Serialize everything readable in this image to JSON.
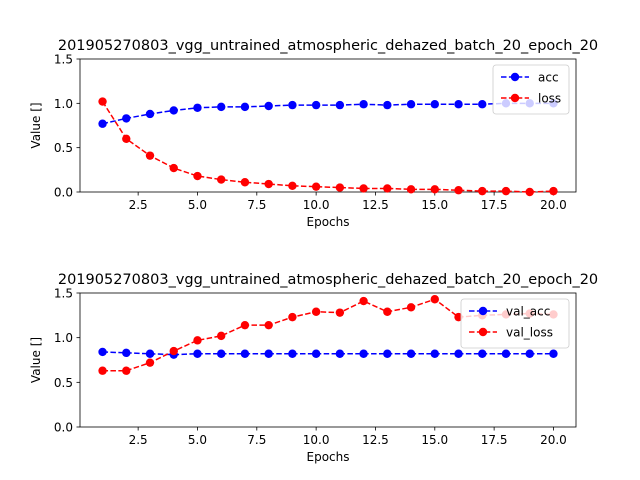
{
  "chart_data": [
    {
      "type": "line",
      "title": "201905270803_vgg_untrained_atmospheric_dehazed_batch_20_epoch_20",
      "xlabel": "Epochs",
      "ylabel": "Value []",
      "xlim": [
        0.05,
        20.95
      ],
      "ylim": [
        0,
        1.5
      ],
      "xticks": [
        2.5,
        5.0,
        7.5,
        10.0,
        12.5,
        15.0,
        17.5,
        20.0
      ],
      "xtick_labels": [
        "2.5",
        "5.0",
        "7.5",
        "10.0",
        "12.5",
        "15.0",
        "17.5",
        "20.0"
      ],
      "yticks": [
        0,
        0.5,
        1.0,
        1.5
      ],
      "ytick_labels": [
        "0.0",
        "0.5",
        "1.0",
        "1.5"
      ],
      "legend_position": "top-right",
      "x": [
        1,
        2,
        3,
        4,
        5,
        6,
        7,
        8,
        9,
        10,
        11,
        12,
        13,
        14,
        15,
        16,
        17,
        18,
        19,
        20
      ],
      "series": [
        {
          "name": "acc",
          "color": "#0000ff",
          "values": [
            0.77,
            0.83,
            0.88,
            0.92,
            0.95,
            0.96,
            0.96,
            0.97,
            0.98,
            0.98,
            0.98,
            0.99,
            0.98,
            0.99,
            0.99,
            0.99,
            0.99,
            1.0,
            1.0,
            1.0
          ]
        },
        {
          "name": "loss",
          "color": "#ff0000",
          "values": [
            1.02,
            0.6,
            0.41,
            0.27,
            0.18,
            0.14,
            0.11,
            0.09,
            0.07,
            0.06,
            0.05,
            0.04,
            0.04,
            0.03,
            0.03,
            0.02,
            0.01,
            0.01,
            0.0,
            0.01
          ]
        }
      ]
    },
    {
      "type": "line",
      "title": "201905270803_vgg_untrained_atmospheric_dehazed_batch_20_epoch_20",
      "xlabel": "Epochs",
      "ylabel": "Value []",
      "xlim": [
        0.05,
        20.95
      ],
      "ylim": [
        0,
        1.5
      ],
      "xticks": [
        2.5,
        5.0,
        7.5,
        10.0,
        12.5,
        15.0,
        17.5,
        20.0
      ],
      "xtick_labels": [
        "2.5",
        "5.0",
        "7.5",
        "10.0",
        "12.5",
        "15.0",
        "17.5",
        "20.0"
      ],
      "yticks": [
        0,
        0.5,
        1.0,
        1.5
      ],
      "ytick_labels": [
        "0.0",
        "0.5",
        "1.0",
        "1.5"
      ],
      "legend_position": "top-right",
      "x": [
        1,
        2,
        3,
        4,
        5,
        6,
        7,
        8,
        9,
        10,
        11,
        12,
        13,
        14,
        15,
        16,
        17,
        18,
        19,
        20
      ],
      "series": [
        {
          "name": "val_acc",
          "color": "#0000ff",
          "values": [
            0.84,
            0.83,
            0.82,
            0.81,
            0.82,
            0.82,
            0.82,
            0.82,
            0.82,
            0.82,
            0.82,
            0.82,
            0.82,
            0.82,
            0.82,
            0.82,
            0.82,
            0.82,
            0.82,
            0.82
          ]
        },
        {
          "name": "val_loss",
          "color": "#ff0000",
          "values": [
            0.63,
            0.63,
            0.72,
            0.85,
            0.97,
            1.02,
            1.14,
            1.14,
            1.23,
            1.29,
            1.28,
            1.41,
            1.29,
            1.34,
            1.43,
            1.23,
            1.25,
            1.26,
            1.27,
            1.26
          ]
        }
      ]
    }
  ]
}
